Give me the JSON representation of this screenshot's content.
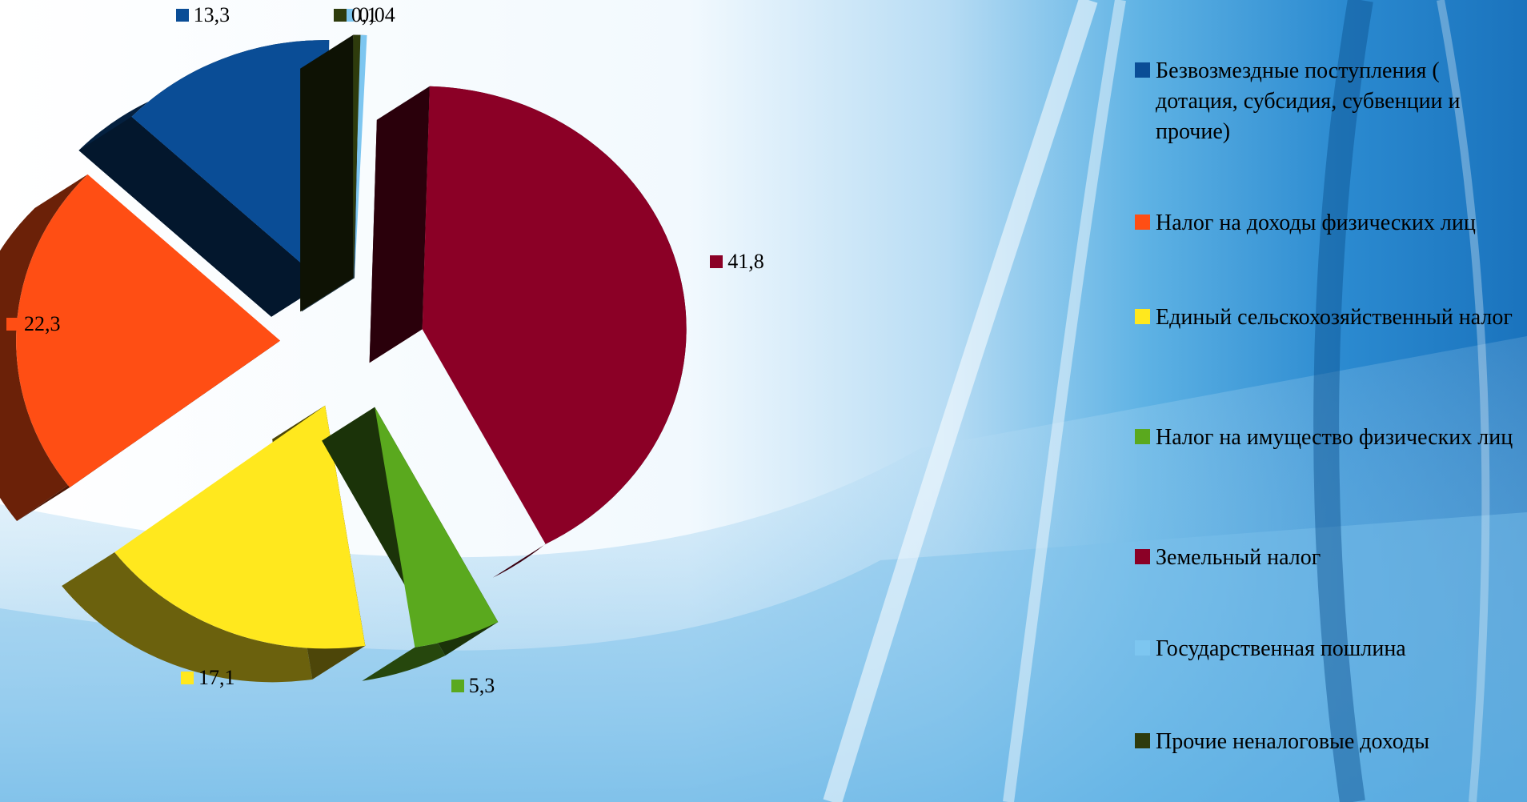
{
  "chart_data": {
    "type": "pie",
    "style": "3d-exploded",
    "legend_position": "right",
    "categories": [
      "Безвозмездные поступления ( дотация, субсидия, субвенции и прочие)",
      "Налог на доходы физических лиц",
      "Единый сельскохозяйственный налог",
      "Налог на имущество физических лиц",
      "Земельный налог",
      "Государственная пошлина",
      "Прочие неналоговые доходы"
    ],
    "values": [
      13.3,
      22.3,
      17.1,
      5.3,
      41.8,
      0.04,
      0.1
    ],
    "value_labels": [
      "13,3",
      "22,3",
      "17,1",
      "5,3",
      "41,8",
      "0,04",
      "0,1"
    ],
    "colors": [
      "#0a4d96",
      "#ff4e14",
      "#ffe81e",
      "#5aa91e",
      "#8b0026",
      "#7dc6f0",
      "#2e3b0c"
    ]
  }
}
